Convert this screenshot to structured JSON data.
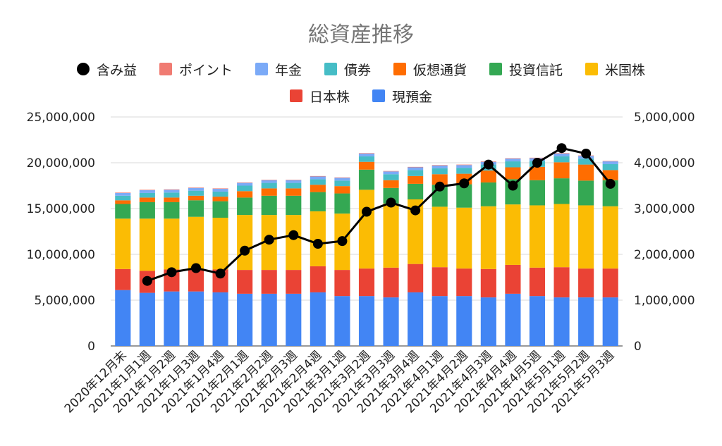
{
  "chart_data": {
    "type": "bar",
    "title": "総資産推移",
    "legend_position": "top",
    "categories": [
      "2020年12月末",
      "2021年1月1週",
      "2021年1月2週",
      "2021年1月3週",
      "2021年1月4週",
      "2021年2月1週",
      "2021年2月2週",
      "2021年2月3週",
      "2021年2月4週",
      "2021年3月1週",
      "2021年3月2週",
      "2021年3月3週",
      "2021年3月4週",
      "2021年4月1週",
      "2021年4月2週",
      "2021年4月3週",
      "2021年4月4週",
      "2021年4月5週",
      "2021年5月1週",
      "2021年5月2週",
      "2021年5月3週"
    ],
    "left_axis": {
      "min": 0,
      "max": 25000000,
      "ticks": [
        "0",
        "5,000,000",
        "10,000,000",
        "15,000,000",
        "20,000,000",
        "25,000,000"
      ],
      "tick_values": [
        0,
        5000000,
        10000000,
        15000000,
        20000000,
        25000000
      ]
    },
    "right_axis": {
      "min": 0,
      "max": 5000000,
      "ticks": [
        "0",
        "1,000,000",
        "2,000,000",
        "3,000,000",
        "4,000,000",
        "5,000,000"
      ],
      "tick_values": [
        0,
        1000000,
        2000000,
        3000000,
        4000000,
        5000000
      ]
    },
    "grid": true,
    "stacked_series": [
      {
        "name": "現預金",
        "color": "#4285f4",
        "values": [
          6100000,
          5800000,
          5950000,
          5950000,
          5850000,
          5700000,
          5700000,
          5700000,
          5850000,
          5450000,
          5450000,
          5300000,
          5850000,
          5450000,
          5450000,
          5300000,
          5700000,
          5450000,
          5300000,
          5300000,
          5300000
        ]
      },
      {
        "name": "日本株",
        "color": "#ea4335",
        "values": [
          2300000,
          2400000,
          2400000,
          2400000,
          2500000,
          2600000,
          2600000,
          2600000,
          2850000,
          2850000,
          3000000,
          3250000,
          3100000,
          3150000,
          3000000,
          3100000,
          3150000,
          3100000,
          3300000,
          3150000,
          3150000
        ]
      },
      {
        "name": "米国株",
        "color": "#fbbc04",
        "values": [
          5500000,
          5700000,
          5550000,
          5750000,
          5650000,
          6000000,
          6000000,
          6000000,
          6000000,
          6150000,
          8600000,
          7000000,
          7050000,
          6600000,
          6650000,
          6850000,
          6600000,
          6800000,
          6900000,
          6900000,
          6800000
        ]
      },
      {
        "name": "投資信託",
        "color": "#34a853",
        "values": [
          1600000,
          1800000,
          1800000,
          1800000,
          1800000,
          1900000,
          2100000,
          2100000,
          2100000,
          2200000,
          2200000,
          1700000,
          1700000,
          2400000,
          2550000,
          2600000,
          2750000,
          2750000,
          2800000,
          2700000,
          2850000
        ]
      },
      {
        "name": "仮想通貨",
        "color": "#ff6d01",
        "values": [
          400000,
          500000,
          500000,
          500000,
          500000,
          700000,
          800000,
          800000,
          800000,
          800000,
          850000,
          850000,
          850000,
          1150000,
          1150000,
          1300000,
          1300000,
          1450000,
          1750000,
          1750000,
          1100000
        ]
      },
      {
        "name": "債券",
        "color": "#46bdc6",
        "values": [
          500000,
          500000,
          550000,
          550000,
          550000,
          600000,
          600000,
          600000,
          600000,
          600000,
          600000,
          650000,
          650000,
          650000,
          650000,
          650000,
          650000,
          650000,
          650000,
          650000,
          650000
        ]
      },
      {
        "name": "年金",
        "color": "#7baaf7",
        "values": [
          300000,
          300000,
          300000,
          300000,
          300000,
          300000,
          300000,
          300000,
          300000,
          300000,
          300000,
          300000,
          300000,
          300000,
          300000,
          300000,
          300000,
          300000,
          300000,
          300000,
          300000
        ]
      },
      {
        "name": "ポイント",
        "color": "#f07b72",
        "values": [
          50000,
          50000,
          50000,
          50000,
          50000,
          50000,
          50000,
          50000,
          50000,
          50000,
          50000,
          50000,
          50000,
          50000,
          50000,
          50000,
          50000,
          50000,
          50000,
          50000,
          50000
        ]
      }
    ],
    "line_series": {
      "name": "含み益",
      "color": "#000000",
      "axis": "right",
      "values": [
        null,
        1420000,
        1610000,
        1700000,
        1580000,
        2080000,
        2320000,
        2420000,
        2230000,
        2290000,
        2930000,
        3130000,
        2960000,
        3480000,
        3550000,
        3960000,
        3500000,
        4000000,
        4320000,
        4200000,
        3540000
      ]
    },
    "legend_rows": [
      [
        "含み益",
        "ポイント",
        "年金",
        "債券",
        "仮想通貨",
        "投資信託",
        "米国株"
      ],
      [
        "日本株",
        "現預金"
      ]
    ]
  }
}
